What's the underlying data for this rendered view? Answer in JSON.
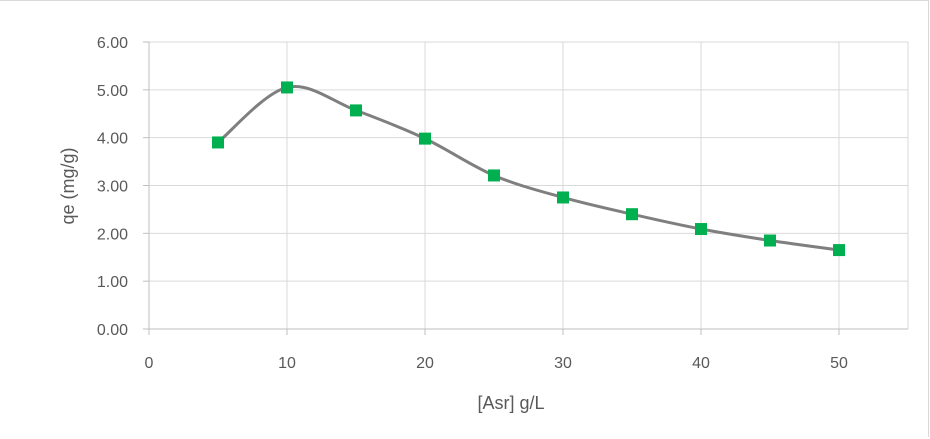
{
  "chart_data": {
    "type": "line",
    "title": "",
    "xlabel": "[Asr] g/L",
    "ylabel": "qe (mg/g)",
    "xlim": [
      0,
      55
    ],
    "ylim": [
      0,
      6
    ],
    "x_ticks": [
      "0",
      "10",
      "20",
      "30",
      "40",
      "50"
    ],
    "y_ticks": [
      "0.00",
      "1.00",
      "2.00",
      "3.00",
      "4.00",
      "5.00",
      "6.00"
    ],
    "grid": true,
    "smooth": true,
    "line_color": "#7f7f7f",
    "marker": "square",
    "marker_color": "#00b050",
    "series": [
      {
        "x": [
          5,
          10,
          15,
          20,
          25,
          30,
          35,
          40,
          45,
          50
        ],
        "values": [
          3.9,
          5.05,
          4.57,
          3.98,
          3.21,
          2.75,
          2.4,
          2.09,
          1.85,
          1.65
        ]
      }
    ]
  }
}
